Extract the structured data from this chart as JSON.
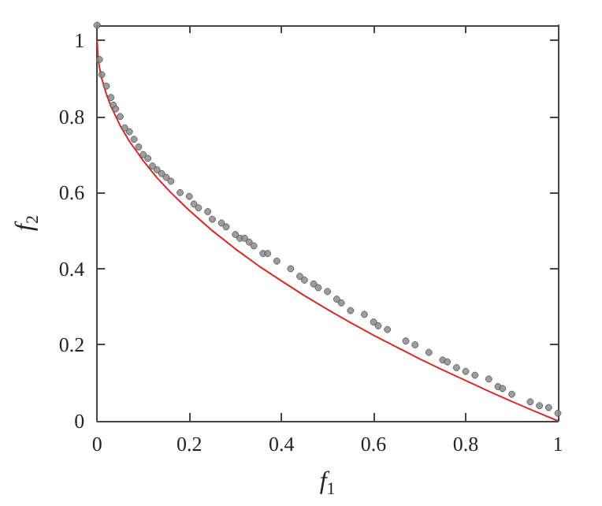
{
  "chart_data": {
    "type": "scatter",
    "xlabel": "f$_{1}$",
    "ylabel": "f$_{2}$",
    "xlim": [
      0,
      1
    ],
    "ylim": [
      0,
      1.04
    ],
    "xticks": [
      0,
      0.2,
      0.4,
      0.6,
      0.8,
      1
    ],
    "yticks": [
      0,
      0.2,
      0.4,
      0.6,
      0.8,
      1
    ],
    "grid": false,
    "series": [
      {
        "type": "scatter",
        "color": "#8c8c8c",
        "marker": "circle",
        "x": [
          0,
          0.005,
          0.01,
          0.02,
          0.03,
          0.035,
          0.04,
          0.05,
          0.06,
          0.07,
          0.08,
          0.09,
          0.1,
          0.11,
          0.12,
          0.13,
          0.14,
          0.15,
          0.16,
          0.18,
          0.2,
          0.21,
          0.22,
          0.24,
          0.25,
          0.27,
          0.28,
          0.3,
          0.31,
          0.32,
          0.33,
          0.34,
          0.36,
          0.37,
          0.39,
          0.42,
          0.44,
          0.45,
          0.47,
          0.48,
          0.5,
          0.52,
          0.53,
          0.55,
          0.58,
          0.6,
          0.61,
          0.63,
          0.67,
          0.69,
          0.72,
          0.75,
          0.76,
          0.78,
          0.8,
          0.82,
          0.85,
          0.87,
          0.88,
          0.9,
          0.94,
          0.96,
          0.98,
          1
        ],
        "values": [
          1.04,
          0.95,
          0.91,
          0.88,
          0.85,
          0.83,
          0.82,
          0.8,
          0.77,
          0.76,
          0.74,
          0.72,
          0.7,
          0.69,
          0.67,
          0.66,
          0.65,
          0.64,
          0.63,
          0.6,
          0.59,
          0.57,
          0.56,
          0.55,
          0.53,
          0.52,
          0.51,
          0.49,
          0.48,
          0.48,
          0.47,
          0.46,
          0.44,
          0.44,
          0.42,
          0.4,
          0.38,
          0.37,
          0.36,
          0.35,
          0.34,
          0.32,
          0.31,
          0.29,
          0.28,
          0.26,
          0.25,
          0.24,
          0.21,
          0.2,
          0.18,
          0.16,
          0.155,
          0.14,
          0.13,
          0.12,
          0.11,
          0.09,
          0.085,
          0.07,
          0.05,
          0.04,
          0.035,
          0.02
        ]
      },
      {
        "type": "line",
        "color": "#d42a2a",
        "marker": "none",
        "line_style": "solid",
        "x": [
          0,
          0.002,
          0.005,
          0.01,
          0.02,
          0.03,
          0.05,
          0.07,
          0.1,
          0.13,
          0.16,
          0.2,
          0.25,
          0.3,
          0.35,
          0.4,
          0.45,
          0.5,
          0.55,
          0.6,
          0.65,
          0.7,
          0.75,
          0.8,
          0.85,
          0.9,
          0.95,
          1
        ],
        "values": [
          1,
          0.955,
          0.929,
          0.9,
          0.859,
          0.827,
          0.776,
          0.735,
          0.684,
          0.639,
          0.6,
          0.553,
          0.5,
          0.452,
          0.408,
          0.368,
          0.329,
          0.293,
          0.258,
          0.225,
          0.194,
          0.163,
          0.134,
          0.106,
          0.078,
          0.051,
          0.025,
          0
        ]
      }
    ]
  }
}
